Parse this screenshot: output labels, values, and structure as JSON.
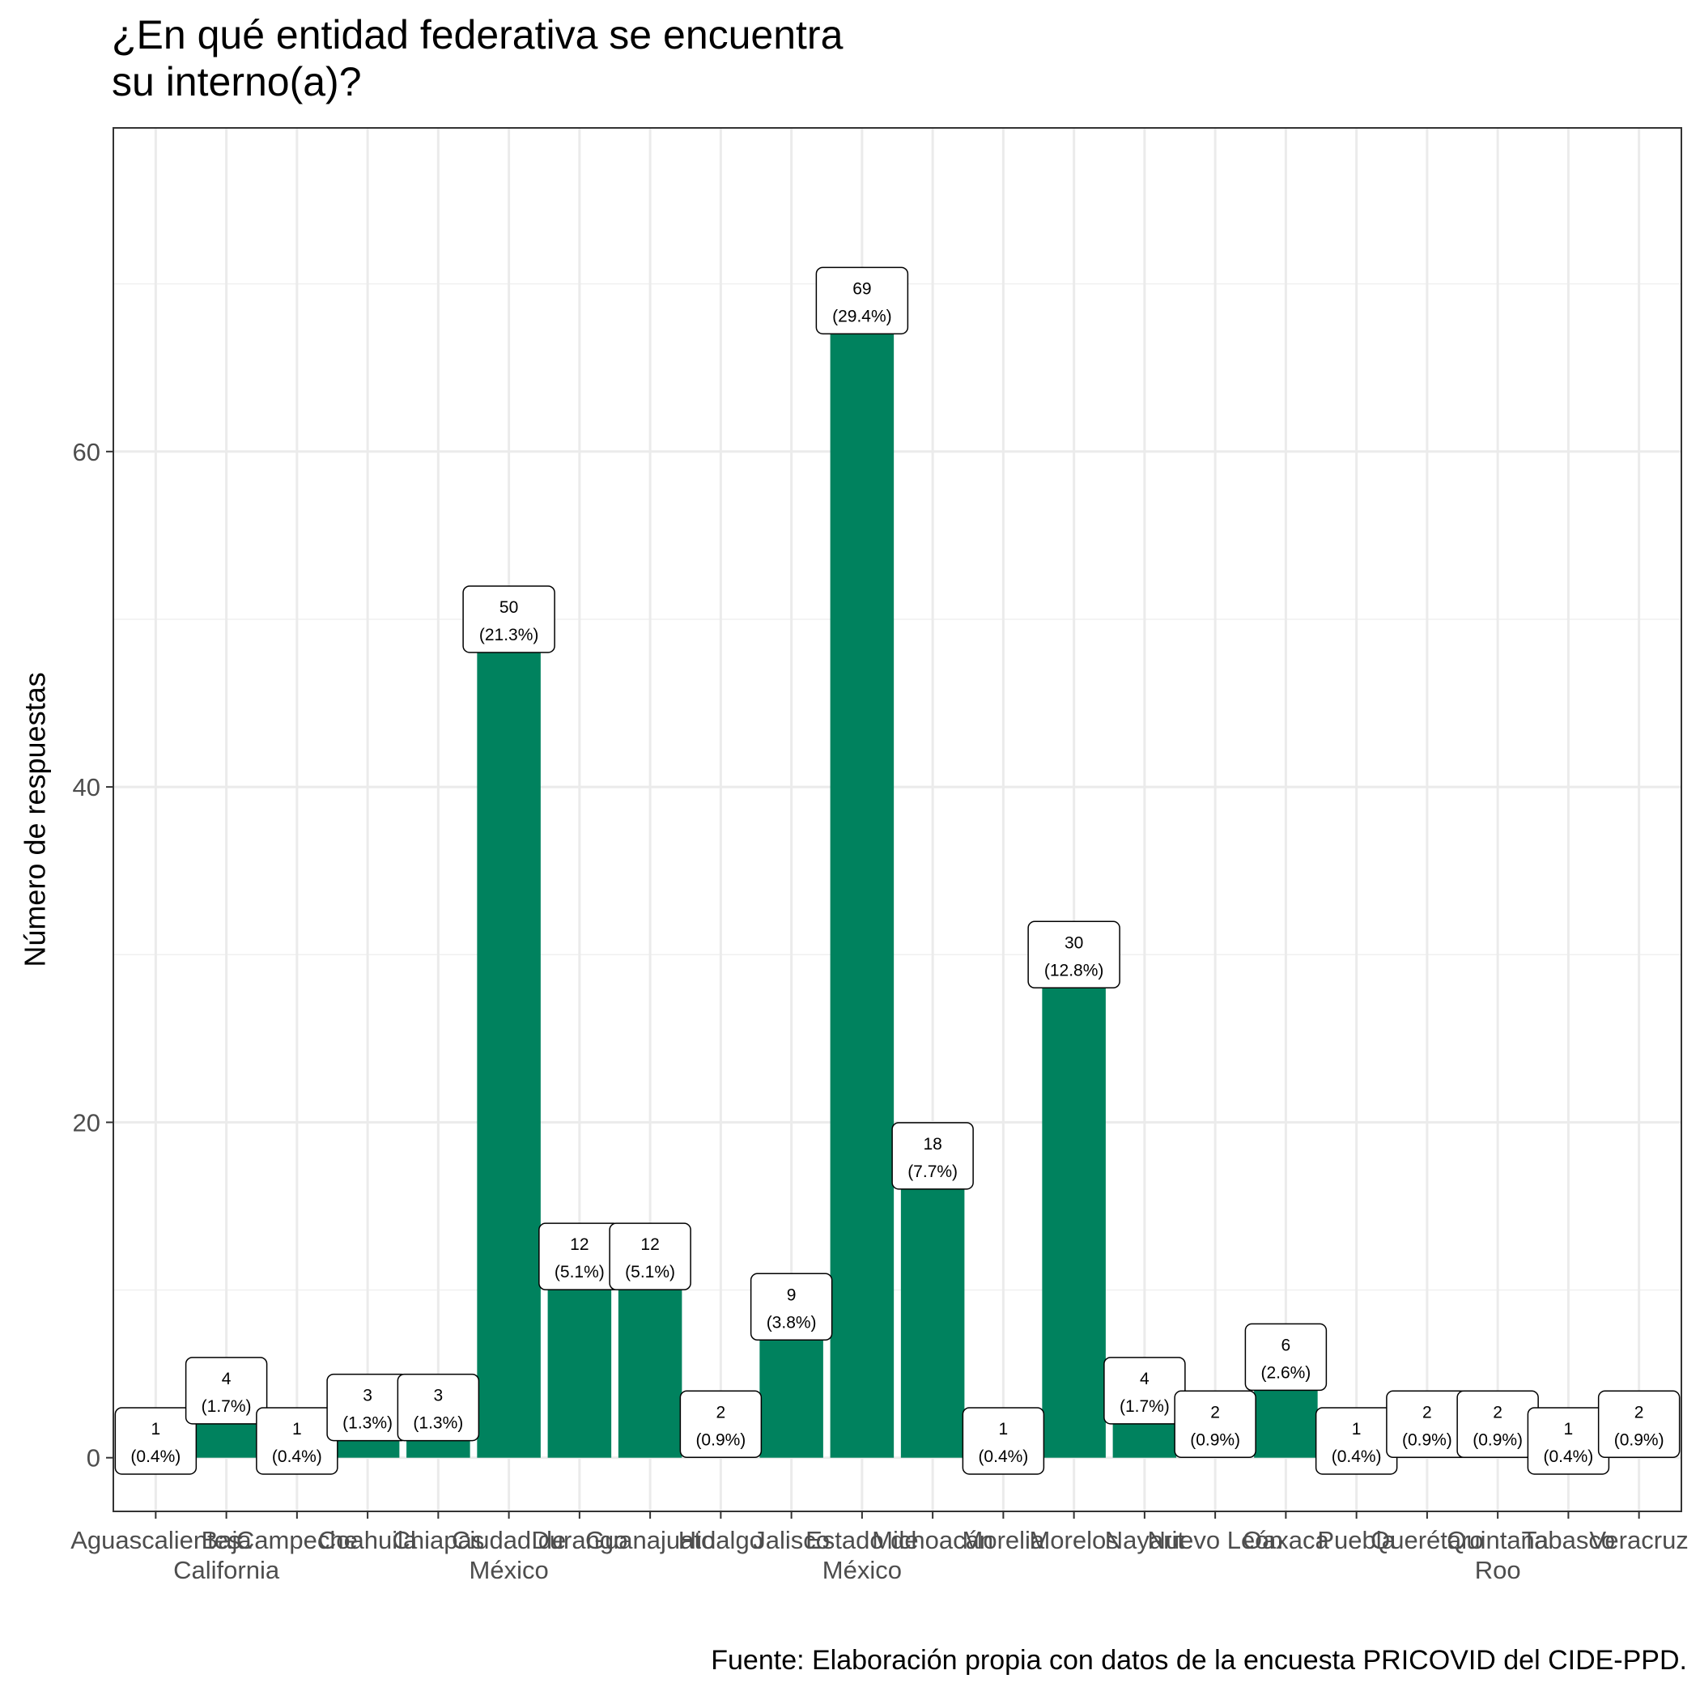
{
  "chart_data": {
    "type": "bar",
    "title": "¿En qué entidad federativa se encuentra\nsu interno(a)?",
    "xlabel": "",
    "ylabel": "Número de respuestas",
    "caption": "Fuente: Elaboración propia con datos de la encuesta PRICOVID del CIDE-PPD.",
    "ylim": [
      -3.2,
      79.3
    ],
    "yticks": [
      0,
      20,
      40,
      60
    ],
    "grid": true,
    "bar_color": "#00825E",
    "categories": [
      "Aguascalientes",
      "Baja\nCalifornia",
      "Campeche",
      "Coahuila",
      "Chiapas",
      "Ciudad de\nMéxico",
      "Durango",
      "Guanajuato",
      "Hidalgo",
      "Jalisco",
      "Estado de\nMéxico",
      "Michoacán",
      "Morelia",
      "Morelos",
      "Nayarit",
      "Nuevo León",
      "Oaxaca",
      "Puebla",
      "Querétaro",
      "Quintana\nRoo",
      "Tabasco",
      "Veracruz"
    ],
    "values": [
      1,
      4,
      1,
      3,
      3,
      50,
      12,
      12,
      2,
      9,
      69,
      18,
      1,
      30,
      4,
      2,
      6,
      1,
      2,
      2,
      1,
      2
    ],
    "bar_labels": [
      "1\n(0.4%)",
      "4\n(1.7%)",
      "1\n(0.4%)",
      "3\n(1.3%)",
      "3\n(1.3%)",
      "50\n(21.3%)",
      "12\n(5.1%)",
      "12\n(5.1%)",
      "2\n(0.9%)",
      "9\n(3.8%)",
      "69\n(29.4%)",
      "18\n(7.7%)",
      "1\n(0.4%)",
      "30\n(12.8%)",
      "4\n(1.7%)",
      "2\n(0.9%)",
      "6\n(2.6%)",
      "1\n(0.4%)",
      "2\n(0.9%)",
      "2\n(0.9%)",
      "1\n(0.4%)",
      "2\n(0.9%)"
    ]
  }
}
